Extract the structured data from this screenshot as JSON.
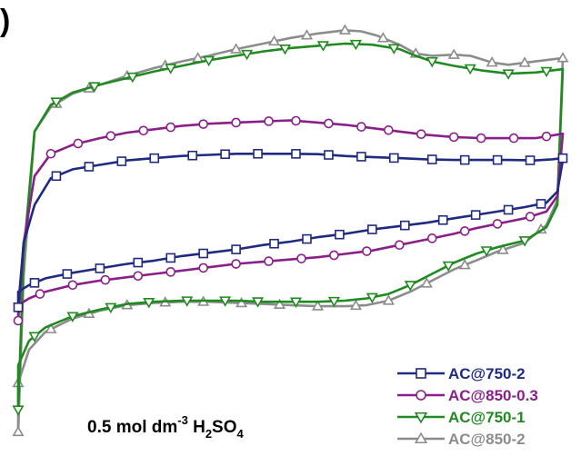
{
  "panel_label": ")",
  "chart_data": {
    "type": "line",
    "title": "",
    "xlabel": "",
    "ylabel": "",
    "xlim": [
      0,
      1
    ],
    "ylim": [
      -1,
      1
    ],
    "annotation": {
      "prefix": "0.5 mol dm",
      "exponent": "-3",
      "formula_pre": " H",
      "sub1": "2",
      "formula_mid": "SO",
      "sub2": "4"
    },
    "legend_position": "bottom-right",
    "series": [
      {
        "name": "AC@750-2",
        "color": "#1f2a80",
        "marker": "square",
        "upper": [
          [
            0.0,
            -0.34
          ],
          [
            0.01,
            -0.05
          ],
          [
            0.03,
            0.12
          ],
          [
            0.06,
            0.24
          ],
          [
            0.1,
            0.28
          ],
          [
            0.15,
            0.3
          ],
          [
            0.2,
            0.32
          ],
          [
            0.25,
            0.33
          ],
          [
            0.3,
            0.34
          ],
          [
            0.35,
            0.345
          ],
          [
            0.4,
            0.35
          ],
          [
            0.45,
            0.35
          ],
          [
            0.5,
            0.35
          ],
          [
            0.55,
            0.348
          ],
          [
            0.6,
            0.34
          ],
          [
            0.65,
            0.335
          ],
          [
            0.7,
            0.33
          ],
          [
            0.75,
            0.325
          ],
          [
            0.8,
            0.322
          ],
          [
            0.85,
            0.322
          ],
          [
            0.9,
            0.322
          ],
          [
            0.95,
            0.32
          ],
          [
            0.98,
            0.325
          ],
          [
            1.0,
            0.33
          ]
        ],
        "lower": [
          [
            1.0,
            0.32
          ],
          [
            0.99,
            0.18
          ],
          [
            0.97,
            0.13
          ],
          [
            0.93,
            0.11
          ],
          [
            0.88,
            0.09
          ],
          [
            0.84,
            0.075
          ],
          [
            0.8,
            0.06
          ],
          [
            0.75,
            0.04
          ],
          [
            0.7,
            0.025
          ],
          [
            0.65,
            0.01
          ],
          [
            0.6,
            -0.01
          ],
          [
            0.55,
            -0.025
          ],
          [
            0.5,
            -0.045
          ],
          [
            0.45,
            -0.06
          ],
          [
            0.4,
            -0.08
          ],
          [
            0.35,
            -0.095
          ],
          [
            0.3,
            -0.11
          ],
          [
            0.25,
            -0.13
          ],
          [
            0.2,
            -0.145
          ],
          [
            0.15,
            -0.165
          ],
          [
            0.1,
            -0.185
          ],
          [
            0.05,
            -0.21
          ],
          [
            0.02,
            -0.24
          ],
          [
            0.0,
            -0.27
          ]
        ],
        "markers_upper": [
          0.0,
          0.07,
          0.13,
          0.19,
          0.25,
          0.32,
          0.38,
          0.44,
          0.51,
          0.57,
          0.63,
          0.69,
          0.76,
          0.82,
          0.88,
          0.94,
          1.0
        ],
        "markers_lower": [
          0.96,
          0.9,
          0.84,
          0.78,
          0.71,
          0.65,
          0.59,
          0.53,
          0.47,
          0.4,
          0.34,
          0.28,
          0.22,
          0.15,
          0.09,
          0.03
        ]
      },
      {
        "name": "AC@850-0.3",
        "color": "#8a1f8a",
        "marker": "circle",
        "upper": [
          [
            0.0,
            -0.4
          ],
          [
            0.01,
            -0.05
          ],
          [
            0.03,
            0.25
          ],
          [
            0.06,
            0.35
          ],
          [
            0.1,
            0.39
          ],
          [
            0.15,
            0.42
          ],
          [
            0.2,
            0.445
          ],
          [
            0.25,
            0.46
          ],
          [
            0.3,
            0.475
          ],
          [
            0.35,
            0.485
          ],
          [
            0.4,
            0.49
          ],
          [
            0.45,
            0.495
          ],
          [
            0.5,
            0.5
          ],
          [
            0.55,
            0.49
          ],
          [
            0.6,
            0.48
          ],
          [
            0.65,
            0.465
          ],
          [
            0.7,
            0.45
          ],
          [
            0.75,
            0.435
          ],
          [
            0.8,
            0.425
          ],
          [
            0.85,
            0.42
          ],
          [
            0.9,
            0.42
          ],
          [
            0.95,
            0.42
          ],
          [
            1.0,
            0.44
          ]
        ],
        "lower": [
          [
            1.0,
            0.44
          ],
          [
            0.99,
            0.16
          ],
          [
            0.97,
            0.09
          ],
          [
            0.93,
            0.06
          ],
          [
            0.88,
            0.035
          ],
          [
            0.84,
            0.015
          ],
          [
            0.8,
            -0.01
          ],
          [
            0.75,
            -0.035
          ],
          [
            0.7,
            -0.06
          ],
          [
            0.65,
            -0.085
          ],
          [
            0.6,
            -0.1
          ],
          [
            0.55,
            -0.115
          ],
          [
            0.5,
            -0.125
          ],
          [
            0.45,
            -0.135
          ],
          [
            0.4,
            -0.145
          ],
          [
            0.35,
            -0.16
          ],
          [
            0.3,
            -0.175
          ],
          [
            0.25,
            -0.19
          ],
          [
            0.2,
            -0.205
          ],
          [
            0.15,
            -0.22
          ],
          [
            0.1,
            -0.24
          ],
          [
            0.05,
            -0.27
          ],
          [
            0.02,
            -0.3
          ],
          [
            0.0,
            -0.33
          ]
        ],
        "markers_upper": [
          0.0,
          0.06,
          0.11,
          0.17,
          0.23,
          0.28,
          0.34,
          0.4,
          0.46,
          0.51,
          0.57,
          0.63,
          0.68,
          0.74,
          0.8,
          0.85,
          0.91,
          0.97
        ],
        "markers_lower": [
          0.94,
          0.88,
          0.82,
          0.76,
          0.7,
          0.64,
          0.58,
          0.52,
          0.46,
          0.4,
          0.34,
          0.28,
          0.22,
          0.16,
          0.1,
          0.04
        ]
      },
      {
        "name": "AC@750-1",
        "color": "#1f8a1f",
        "marker": "triangle-down",
        "upper": [
          [
            0.0,
            -0.8
          ],
          [
            0.01,
            -0.1
          ],
          [
            0.03,
            0.45
          ],
          [
            0.06,
            0.57
          ],
          [
            0.1,
            0.625
          ],
          [
            0.15,
            0.66
          ],
          [
            0.2,
            0.69
          ],
          [
            0.25,
            0.72
          ],
          [
            0.3,
            0.745
          ],
          [
            0.35,
            0.77
          ],
          [
            0.4,
            0.79
          ],
          [
            0.45,
            0.81
          ],
          [
            0.5,
            0.825
          ],
          [
            0.55,
            0.835
          ],
          [
            0.6,
            0.845
          ],
          [
            0.65,
            0.84
          ],
          [
            0.7,
            0.82
          ],
          [
            0.73,
            0.79
          ],
          [
            0.76,
            0.765
          ],
          [
            0.8,
            0.745
          ],
          [
            0.85,
            0.725
          ],
          [
            0.9,
            0.71
          ],
          [
            0.95,
            0.715
          ],
          [
            1.0,
            0.73
          ]
        ],
        "lower": [
          [
            1.0,
            0.73
          ],
          [
            0.99,
            0.12
          ],
          [
            0.97,
            0.02
          ],
          [
            0.93,
            -0.04
          ],
          [
            0.88,
            -0.07
          ],
          [
            0.84,
            -0.1
          ],
          [
            0.8,
            -0.14
          ],
          [
            0.76,
            -0.19
          ],
          [
            0.72,
            -0.24
          ],
          [
            0.68,
            -0.28
          ],
          [
            0.64,
            -0.3
          ],
          [
            0.6,
            -0.31
          ],
          [
            0.55,
            -0.315
          ],
          [
            0.5,
            -0.315
          ],
          [
            0.45,
            -0.315
          ],
          [
            0.4,
            -0.31
          ],
          [
            0.35,
            -0.31
          ],
          [
            0.3,
            -0.31
          ],
          [
            0.25,
            -0.315
          ],
          [
            0.2,
            -0.325
          ],
          [
            0.15,
            -0.35
          ],
          [
            0.1,
            -0.38
          ],
          [
            0.05,
            -0.43
          ],
          [
            0.02,
            -0.49
          ],
          [
            0.0,
            -0.6
          ]
        ],
        "markers_upper": [
          0.0,
          0.07,
          0.14,
          0.21,
          0.28,
          0.35,
          0.42,
          0.49,
          0.56,
          0.62,
          0.69,
          0.76,
          0.83,
          0.9,
          0.97
        ],
        "markers_lower": [
          0.93,
          0.86,
          0.79,
          0.72,
          0.65,
          0.58,
          0.51,
          0.44,
          0.38,
          0.31,
          0.24,
          0.17,
          0.1,
          0.03
        ]
      },
      {
        "name": "AC@850-2",
        "color": "#8c8c8c",
        "marker": "triangle-up",
        "upper": [
          [
            0.0,
            -0.9
          ],
          [
            0.01,
            -0.2
          ],
          [
            0.03,
            0.45
          ],
          [
            0.06,
            0.56
          ],
          [
            0.1,
            0.62
          ],
          [
            0.15,
            0.66
          ],
          [
            0.2,
            0.7
          ],
          [
            0.25,
            0.735
          ],
          [
            0.3,
            0.765
          ],
          [
            0.35,
            0.79
          ],
          [
            0.4,
            0.82
          ],
          [
            0.45,
            0.845
          ],
          [
            0.5,
            0.87
          ],
          [
            0.55,
            0.89
          ],
          [
            0.6,
            0.905
          ],
          [
            0.63,
            0.9
          ],
          [
            0.66,
            0.88
          ],
          [
            0.7,
            0.84
          ],
          [
            0.73,
            0.8
          ],
          [
            0.76,
            0.79
          ],
          [
            0.8,
            0.795
          ],
          [
            0.83,
            0.79
          ],
          [
            0.87,
            0.76
          ],
          [
            0.9,
            0.75
          ],
          [
            0.95,
            0.765
          ],
          [
            1.0,
            0.78
          ]
        ],
        "lower": [
          [
            1.0,
            0.78
          ],
          [
            0.99,
            0.14
          ],
          [
            0.97,
            0.03
          ],
          [
            0.93,
            -0.05
          ],
          [
            0.88,
            -0.09
          ],
          [
            0.84,
            -0.13
          ],
          [
            0.8,
            -0.17
          ],
          [
            0.76,
            -0.22
          ],
          [
            0.72,
            -0.27
          ],
          [
            0.68,
            -0.31
          ],
          [
            0.64,
            -0.33
          ],
          [
            0.6,
            -0.335
          ],
          [
            0.55,
            -0.335
          ],
          [
            0.5,
            -0.33
          ],
          [
            0.45,
            -0.325
          ],
          [
            0.4,
            -0.32
          ],
          [
            0.35,
            -0.315
          ],
          [
            0.3,
            -0.315
          ],
          [
            0.25,
            -0.32
          ],
          [
            0.2,
            -0.33
          ],
          [
            0.15,
            -0.355
          ],
          [
            0.1,
            -0.39
          ],
          [
            0.05,
            -0.45
          ],
          [
            0.02,
            -0.53
          ],
          [
            0.0,
            -0.68
          ]
        ],
        "markers_upper": [
          0.0,
          0.07,
          0.13,
          0.2,
          0.27,
          0.33,
          0.4,
          0.47,
          0.53,
          0.6,
          0.67,
          0.73,
          0.8,
          0.87,
          0.93,
          1.0
        ],
        "markers_lower": [
          0.96,
          0.89,
          0.82,
          0.75,
          0.68,
          0.62,
          0.55,
          0.48,
          0.41,
          0.34,
          0.27,
          0.2,
          0.13,
          0.06,
          0.0
        ]
      }
    ]
  }
}
